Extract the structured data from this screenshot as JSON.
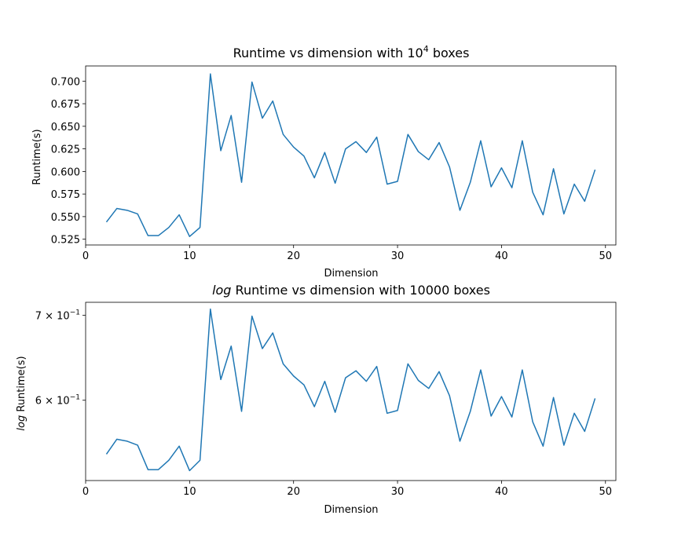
{
  "chart_data": [
    {
      "type": "line",
      "title": "Runtime vs dimension with 10",
      "title_superscript": "4",
      "title_suffix": " boxes",
      "xlabel": "Dimension",
      "ylabel": "Runtime(s)",
      "xlim": [
        0,
        51
      ],
      "ylim": [
        0.5186,
        0.7168
      ],
      "xticks": [
        0,
        10,
        20,
        30,
        40,
        50
      ],
      "yticks": [
        0.525,
        0.55,
        0.575,
        0.6,
        0.625,
        0.65,
        0.675,
        0.7
      ],
      "ytick_labels": [
        "0.525",
        "0.550",
        "0.575",
        "0.600",
        "0.625",
        "0.650",
        "0.675",
        "0.700"
      ],
      "color": "#1f77b4",
      "series": [
        {
          "x": [
            2,
            3,
            4,
            5,
            6,
            7,
            8,
            9,
            10,
            11,
            12,
            13,
            14,
            15,
            16,
            17,
            18,
            19,
            20,
            21,
            22,
            23,
            24,
            25,
            26,
            27,
            28,
            29,
            30,
            31,
            32,
            33,
            34,
            35,
            36,
            37,
            38,
            39,
            40,
            41,
            42,
            43,
            44,
            45,
            46,
            47,
            48,
            49
          ],
          "values": [
            0.544,
            0.559,
            0.557,
            0.553,
            0.529,
            0.529,
            0.538,
            0.552,
            0.528,
            0.538,
            0.708,
            0.623,
            0.662,
            0.588,
            0.699,
            0.659,
            0.678,
            0.641,
            0.627,
            0.617,
            0.593,
            0.621,
            0.587,
            0.625,
            0.633,
            0.621,
            0.638,
            0.586,
            0.589,
            0.641,
            0.622,
            0.613,
            0.632,
            0.605,
            0.557,
            0.588,
            0.634,
            0.583,
            0.604,
            0.582,
            0.634,
            0.577,
            0.552,
            0.603,
            0.553,
            0.586,
            0.567,
            0.602
          ]
        }
      ]
    },
    {
      "type": "line",
      "title_italic": "log",
      "title": " Runtime vs dimension with 10000 boxes",
      "xlabel": "Dimension",
      "ylabel_italic": "log",
      "ylabel": " Runtime(s)",
      "xlim": [
        0,
        51
      ],
      "ylim": [
        0.5186,
        0.7168
      ],
      "yscale": "log",
      "xticks": [
        0,
        10,
        20,
        30,
        40,
        50
      ],
      "yticks": [
        0.6,
        0.7
      ],
      "ytick_labels": [
        {
          "base": "6 × 10",
          "exp": "−1"
        },
        {
          "base": "7 × 10",
          "exp": "−1"
        }
      ],
      "color": "#1f77b4",
      "series": [
        {
          "x": [
            2,
            3,
            4,
            5,
            6,
            7,
            8,
            9,
            10,
            11,
            12,
            13,
            14,
            15,
            16,
            17,
            18,
            19,
            20,
            21,
            22,
            23,
            24,
            25,
            26,
            27,
            28,
            29,
            30,
            31,
            32,
            33,
            34,
            35,
            36,
            37,
            38,
            39,
            40,
            41,
            42,
            43,
            44,
            45,
            46,
            47,
            48,
            49
          ],
          "values": [
            0.544,
            0.559,
            0.557,
            0.553,
            0.529,
            0.529,
            0.538,
            0.552,
            0.528,
            0.538,
            0.708,
            0.623,
            0.662,
            0.588,
            0.699,
            0.659,
            0.678,
            0.641,
            0.627,
            0.617,
            0.593,
            0.621,
            0.587,
            0.625,
            0.633,
            0.621,
            0.638,
            0.586,
            0.589,
            0.641,
            0.622,
            0.613,
            0.632,
            0.605,
            0.557,
            0.588,
            0.634,
            0.583,
            0.604,
            0.582,
            0.634,
            0.577,
            0.552,
            0.603,
            0.553,
            0.586,
            0.567,
            0.602
          ]
        }
      ]
    }
  ]
}
